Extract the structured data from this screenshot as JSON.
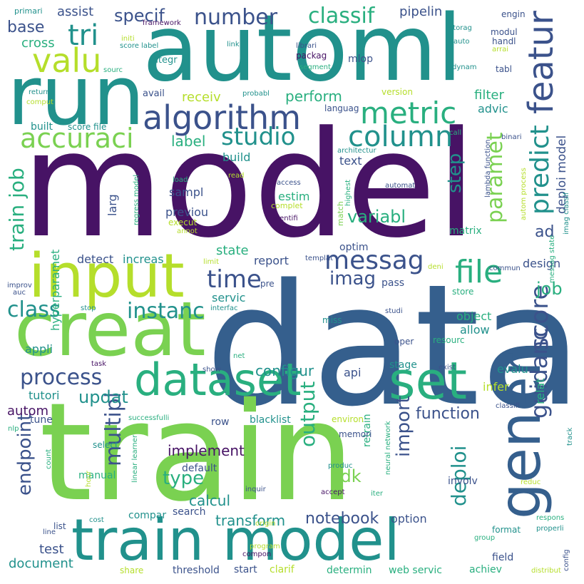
{
  "palette": {
    "deep_purple": "#471365",
    "indigo": "#3b528b",
    "slate_blue": "#355f8d",
    "teal": "#21918c",
    "sea_green": "#29af7f",
    "green": "#5ec962",
    "lime": "#7ad151",
    "yellow_green": "#b5de2b"
  },
  "words": [
    {
      "text": "model",
      "color": "#471365"
    },
    {
      "text": "data",
      "color": "#355f8d"
    },
    {
      "text": "train",
      "color": "#7ad151"
    },
    {
      "text": "automl",
      "color": "#21918c"
    },
    {
      "text": "run",
      "color": "#21918c"
    },
    {
      "text": "creat",
      "color": "#7ad151"
    },
    {
      "text": "input",
      "color": "#b5de2b"
    },
    {
      "text": "train model",
      "color": "#21918c"
    },
    {
      "text": "dataset",
      "color": "#29af7f"
    },
    {
      "text": "set",
      "color": "#29af7f"
    },
    {
      "text": "gener",
      "color": "#355f8d"
    },
    {
      "text": "algorithm",
      "color": "#3b528b"
    },
    {
      "text": "metric",
      "color": "#29af7f"
    },
    {
      "text": "featur",
      "color": "#3b528b"
    },
    {
      "text": "accuraci",
      "color": "#7ad151"
    },
    {
      "text": "valu",
      "color": "#b5de2b"
    },
    {
      "text": "tri",
      "color": "#21918c"
    },
    {
      "text": "column",
      "color": "#21918c"
    },
    {
      "text": "studio",
      "color": "#21918c"
    },
    {
      "text": "file",
      "color": "#29af7f"
    },
    {
      "text": "messag",
      "color": "#3b528b"
    },
    {
      "text": "predict",
      "color": "#21918c"
    },
    {
      "text": "paramet",
      "color": "#7ad151"
    },
    {
      "text": "time",
      "color": "#3b528b"
    },
    {
      "text": "score",
      "color": "#3b528b"
    },
    {
      "text": "guidanc",
      "color": "#3b528b"
    },
    {
      "text": "process",
      "color": "#3b528b"
    },
    {
      "text": "class",
      "color": "#21918c"
    },
    {
      "text": "instanc",
      "color": "#21918c"
    },
    {
      "text": "multipl",
      "color": "#3b528b"
    },
    {
      "text": "endpoint",
      "color": "#3b528b"
    },
    {
      "text": "output",
      "color": "#29af7f"
    },
    {
      "text": "deploi",
      "color": "#21918c"
    },
    {
      "text": "import",
      "color": "#3b528b"
    },
    {
      "text": "train job",
      "color": "#29af7f"
    },
    {
      "text": "number",
      "color": "#3b528b"
    },
    {
      "text": "classif",
      "color": "#29af7f"
    },
    {
      "text": "specif",
      "color": "#3b528b"
    },
    {
      "text": "step",
      "color": "#21918c"
    },
    {
      "text": "variabl",
      "color": "#29af7f"
    },
    {
      "text": "imag",
      "color": "#3b528b"
    },
    {
      "text": "job",
      "color": "#29af7f"
    },
    {
      "text": "updat",
      "color": "#21918c"
    },
    {
      "text": "type",
      "color": "#29af7f"
    },
    {
      "text": "sdk",
      "color": "#7ad151"
    },
    {
      "text": "notebook",
      "color": "#3b528b"
    },
    {
      "text": "transform",
      "color": "#21918c"
    },
    {
      "text": "calcul",
      "color": "#21918c"
    },
    {
      "text": "implement",
      "color": "#471365"
    },
    {
      "text": "function",
      "color": "#3b528b"
    },
    {
      "text": "configur",
      "color": "#21918c"
    },
    {
      "text": "perform",
      "color": "#29af7f"
    },
    {
      "text": "label",
      "color": "#29af7f"
    },
    {
      "text": "receiv",
      "color": "#b5de2b"
    },
    {
      "text": "base",
      "color": "#3b528b"
    },
    {
      "text": "cross",
      "color": "#29af7f"
    },
    {
      "text": "assist",
      "color": "#3b528b"
    },
    {
      "text": "pipelin",
      "color": "#3b528b"
    },
    {
      "text": "filter",
      "color": "#29af7f"
    },
    {
      "text": "advic",
      "color": "#21918c"
    },
    {
      "text": "deploi model",
      "color": "#3b528b"
    },
    {
      "text": "ad",
      "color": "#3b528b"
    },
    {
      "text": "state",
      "color": "#29af7f"
    },
    {
      "text": "design",
      "color": "#3b528b"
    },
    {
      "text": "test",
      "color": "#3b528b"
    },
    {
      "text": "document",
      "color": "#21918c"
    },
    {
      "text": "autom",
      "color": "#471365"
    },
    {
      "text": "tutori",
      "color": "#21918c"
    },
    {
      "text": "appli",
      "color": "#21918c"
    },
    {
      "text": "hyperparamet",
      "color": "#29af7f"
    },
    {
      "text": "servic",
      "color": "#21918c"
    },
    {
      "text": "report",
      "color": "#3b528b"
    },
    {
      "text": "detect",
      "color": "#3b528b"
    },
    {
      "text": "increas",
      "color": "#21918c"
    },
    {
      "text": "estim",
      "color": "#29af7f"
    },
    {
      "text": "sampl",
      "color": "#3b528b"
    },
    {
      "text": "previou",
      "color": "#3b528b"
    },
    {
      "text": "larg",
      "color": "#3b528b"
    },
    {
      "text": "build",
      "color": "#21918c"
    },
    {
      "text": "text",
      "color": "#3b528b"
    },
    {
      "text": "matrix",
      "color": "#29af7f"
    },
    {
      "text": "optim",
      "color": "#3b528b"
    },
    {
      "text": "pass",
      "color": "#3b528b"
    },
    {
      "text": "object",
      "color": "#29af7f"
    },
    {
      "text": "allow",
      "color": "#21918c"
    },
    {
      "text": "evalu",
      "color": "#21918c"
    },
    {
      "text": "relat",
      "color": "#29af7f"
    },
    {
      "text": "infer",
      "color": "#b5de2b"
    },
    {
      "text": "api",
      "color": "#3b528b"
    },
    {
      "text": "stage",
      "color": "#21918c"
    },
    {
      "text": "retrain",
      "color": "#29af7f"
    },
    {
      "text": "option",
      "color": "#3b528b"
    },
    {
      "text": "achiev",
      "color": "#29af7f"
    },
    {
      "text": "field",
      "color": "#3b528b"
    },
    {
      "text": "format",
      "color": "#21918c"
    },
    {
      "text": "row",
      "color": "#3b528b"
    },
    {
      "text": "default",
      "color": "#3b528b"
    },
    {
      "text": "compar",
      "color": "#21918c"
    },
    {
      "text": "search",
      "color": "#3b528b"
    },
    {
      "text": "manual",
      "color": "#29af7f"
    },
    {
      "text": "tune",
      "color": "#3b528b"
    },
    {
      "text": "blacklist",
      "color": "#21918c"
    },
    {
      "text": "memori",
      "color": "#3b528b"
    },
    {
      "text": "involv",
      "color": "#3b528b"
    },
    {
      "text": "web servic",
      "color": "#29af7f"
    },
    {
      "text": "determin",
      "color": "#29af7f"
    },
    {
      "text": "clarif",
      "color": "#b5de2b"
    },
    {
      "text": "start",
      "color": "#3b528b"
    },
    {
      "text": "threshold",
      "color": "#3b528b"
    },
    {
      "text": "share",
      "color": "#b5de2b"
    },
    {
      "text": "score file",
      "color": "#21918c"
    },
    {
      "text": "built",
      "color": "#21918c"
    },
    {
      "text": "avail",
      "color": "#3b528b"
    },
    {
      "text": "integr",
      "color": "#21918c"
    },
    {
      "text": "packag",
      "color": "#471365"
    },
    {
      "text": "mlop",
      "color": "#3b528b"
    },
    {
      "text": "languag",
      "color": "#3b528b"
    },
    {
      "text": "version",
      "color": "#b5de2b"
    },
    {
      "text": "modul",
      "color": "#3b528b"
    },
    {
      "text": "handl",
      "color": "#3b528b"
    },
    {
      "text": "tabl",
      "color": "#3b528b"
    },
    {
      "text": "engin",
      "color": "#3b528b"
    },
    {
      "text": "storag",
      "color": "#21918c"
    },
    {
      "text": "auto",
      "color": "#21918c"
    },
    {
      "text": "arrai",
      "color": "#b5de2b"
    },
    {
      "text": "dynam",
      "color": "#21918c"
    },
    {
      "text": "librari",
      "color": "#3b528b"
    },
    {
      "text": "segment",
      "color": "#29af7f"
    },
    {
      "text": "primari",
      "color": "#21918c"
    },
    {
      "text": "framework",
      "color": "#471365"
    },
    {
      "text": "initi",
      "color": "#b5de2b"
    },
    {
      "text": "score label",
      "color": "#21918c"
    },
    {
      "text": "link",
      "color": "#21918c"
    },
    {
      "text": "sourc",
      "color": "#29af7f"
    },
    {
      "text": "return",
      "color": "#21918c"
    },
    {
      "text": "comput",
      "color": "#b5de2b"
    },
    {
      "text": "probabl",
      "color": "#21918c"
    },
    {
      "text": "call",
      "color": "#29af7f"
    },
    {
      "text": "binari",
      "color": "#3b528b"
    },
    {
      "text": "architectur",
      "color": "#21918c"
    },
    {
      "text": "lambda function",
      "color": "#3b528b"
    },
    {
      "text": "autom process",
      "color": "#b5de2b"
    },
    {
      "text": "imag classif",
      "color": "#21918c"
    },
    {
      "text": "access",
      "color": "#3b528b"
    },
    {
      "text": "automat",
      "color": "#3b528b"
    },
    {
      "text": "load",
      "color": "#29af7f"
    },
    {
      "text": "read",
      "color": "#b5de2b"
    },
    {
      "text": "highest",
      "color": "#29af7f"
    },
    {
      "text": "match",
      "color": "#7ad151"
    },
    {
      "text": "complet",
      "color": "#b5de2b"
    },
    {
      "text": "execut",
      "color": "#b5de2b"
    },
    {
      "text": "annot",
      "color": "#b5de2b"
    },
    {
      "text": "identifi",
      "color": "#471365"
    },
    {
      "text": "regress model",
      "color": "#29af7f"
    },
    {
      "text": "limit",
      "color": "#b5de2b"
    },
    {
      "text": "templat",
      "color": "#3b528b"
    },
    {
      "text": "pre",
      "color": "#3b528b"
    },
    {
      "text": "deni",
      "color": "#b5de2b"
    },
    {
      "text": "commun",
      "color": "#3b528b"
    },
    {
      "text": "messag state",
      "color": "#29af7f"
    },
    {
      "text": "improv",
      "color": "#3b528b"
    },
    {
      "text": "auc",
      "color": "#3b528b"
    },
    {
      "text": "stop",
      "color": "#21918c"
    },
    {
      "text": "interfac",
      "color": "#21918c"
    },
    {
      "text": "miss",
      "color": "#21918c"
    },
    {
      "text": "studi",
      "color": "#3b528b"
    },
    {
      "text": "store",
      "color": "#29af7f"
    },
    {
      "text": "resourc",
      "color": "#29af7f"
    },
    {
      "text": "oper",
      "color": "#3b528b"
    },
    {
      "text": "net",
      "color": "#29af7f"
    },
    {
      "text": "task",
      "color": "#471365"
    },
    {
      "text": "show",
      "color": "#3b528b"
    },
    {
      "text": "exist",
      "color": "#3b528b"
    },
    {
      "text": "successfulli",
      "color": "#29af7f"
    },
    {
      "text": "environ",
      "color": "#b5de2b"
    },
    {
      "text": "neural network",
      "color": "#29af7f"
    },
    {
      "text": "classifi",
      "color": "#3b528b"
    },
    {
      "text": "track",
      "color": "#21918c"
    },
    {
      "text": "nlp",
      "color": "#29af7f"
    },
    {
      "text": "select",
      "color": "#21918c"
    },
    {
      "text": "linear learner",
      "color": "#29af7f"
    },
    {
      "text": "count",
      "color": "#29af7f"
    },
    {
      "text": "hour",
      "color": "#b5de2b"
    },
    {
      "text": "produc",
      "color": "#21918c"
    },
    {
      "text": "inquir",
      "color": "#3b528b"
    },
    {
      "text": "accept",
      "color": "#471365"
    },
    {
      "text": "iter",
      "color": "#29af7f"
    },
    {
      "text": "reduc",
      "color": "#b5de2b"
    },
    {
      "text": "respons",
      "color": "#29af7f"
    },
    {
      "text": "properli",
      "color": "#21918c"
    },
    {
      "text": "group",
      "color": "#29af7f"
    },
    {
      "text": "config",
      "color": "#3b528b"
    },
    {
      "text": "distribut",
      "color": "#b5de2b"
    },
    {
      "text": "list",
      "color": "#3b528b"
    },
    {
      "text": "line",
      "color": "#3b528b"
    },
    {
      "text": "cost",
      "color": "#21918c"
    },
    {
      "text": "origin",
      "color": "#b5de2b"
    },
    {
      "text": "program",
      "color": "#b5de2b"
    },
    {
      "text": "compon",
      "color": "#471365"
    }
  ]
}
